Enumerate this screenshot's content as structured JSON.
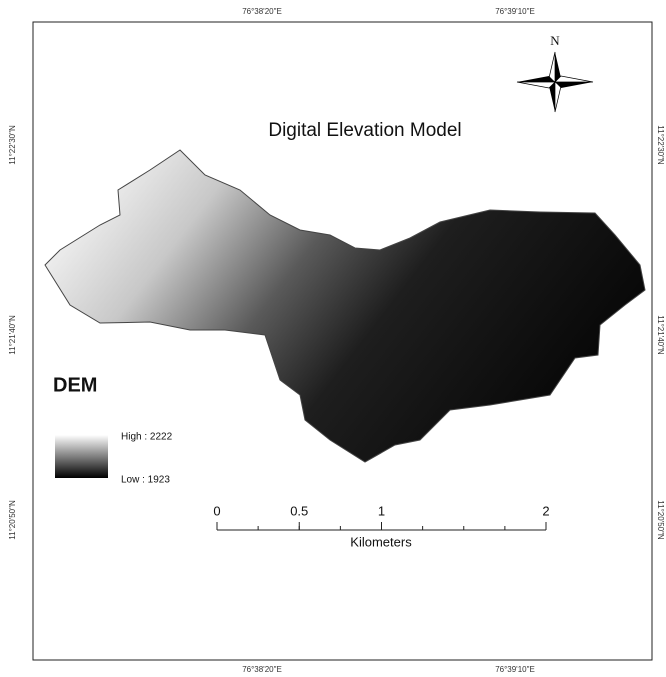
{
  "map": {
    "title": "Digital Elevation Model",
    "north": "N",
    "legend": {
      "title": "DEM",
      "high": "High : 2222",
      "low": "Low : 1923"
    },
    "scale_bar": {
      "ticks": [
        0,
        0.5,
        1,
        2
      ],
      "unit": "Kilometers"
    },
    "longitudes": [
      "76°38'20\"E",
      "76°39'10\"E"
    ],
    "latitudes": [
      "11°22'30\"N",
      "11°21'40\"N",
      "11°20'50\"N"
    ]
  }
}
